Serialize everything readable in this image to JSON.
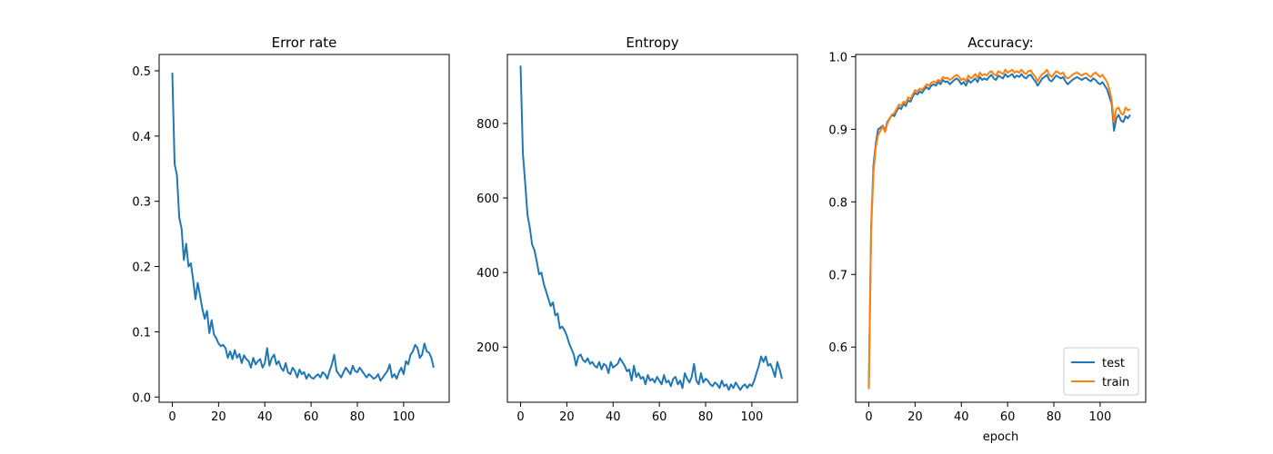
{
  "chart_data": [
    {
      "type": "line",
      "title": "Error rate",
      "xlabel": "",
      "ylabel": "",
      "xlim": [
        -5.7,
        119.7
      ],
      "ylim": [
        -0.008,
        0.525
      ],
      "xticks": [
        0,
        20,
        40,
        60,
        80,
        100
      ],
      "yticks": [
        0.0,
        0.1,
        0.2,
        0.3,
        0.4,
        0.5
      ],
      "ytick_labels": [
        "0.0",
        "0.1",
        "0.2",
        "0.3",
        "0.4",
        "0.5"
      ],
      "grid": false,
      "legend": null,
      "series": [
        {
          "color": "#1f77b4",
          "x": [
            0,
            1,
            2,
            3,
            4,
            5,
            6,
            7,
            8,
            9,
            10,
            11,
            12,
            13,
            14,
            15,
            16,
            17,
            18,
            19,
            20,
            21,
            22,
            23,
            24,
            25,
            26,
            27,
            28,
            29,
            30,
            31,
            32,
            33,
            34,
            35,
            36,
            37,
            38,
            39,
            40,
            41,
            42,
            43,
            44,
            45,
            46,
            47,
            48,
            49,
            50,
            51,
            52,
            53,
            54,
            55,
            56,
            57,
            58,
            59,
            60,
            61,
            62,
            63,
            64,
            65,
            66,
            67,
            68,
            69,
            70,
            71,
            72,
            73,
            74,
            75,
            76,
            77,
            78,
            79,
            80,
            81,
            82,
            83,
            84,
            85,
            86,
            87,
            88,
            89,
            90,
            91,
            92,
            93,
            94,
            95,
            96,
            97,
            98,
            99,
            100,
            101,
            102,
            103,
            104,
            105,
            106,
            107,
            108,
            109,
            110,
            111,
            112,
            113
          ],
          "values": [
            0.497,
            0.357,
            0.34,
            0.275,
            0.258,
            0.21,
            0.235,
            0.2,
            0.205,
            0.18,
            0.15,
            0.175,
            0.155,
            0.135,
            0.12,
            0.132,
            0.098,
            0.118,
            0.096,
            0.09,
            0.082,
            0.078,
            0.08,
            0.075,
            0.06,
            0.07,
            0.058,
            0.072,
            0.06,
            0.066,
            0.052,
            0.064,
            0.058,
            0.055,
            0.045,
            0.06,
            0.05,
            0.055,
            0.058,
            0.045,
            0.052,
            0.075,
            0.048,
            0.06,
            0.065,
            0.05,
            0.055,
            0.045,
            0.04,
            0.052,
            0.038,
            0.035,
            0.045,
            0.04,
            0.03,
            0.042,
            0.035,
            0.038,
            0.028,
            0.035,
            0.03,
            0.028,
            0.032,
            0.035,
            0.03,
            0.038,
            0.035,
            0.028,
            0.04,
            0.05,
            0.065,
            0.04,
            0.035,
            0.03,
            0.038,
            0.045,
            0.04,
            0.035,
            0.048,
            0.04,
            0.038,
            0.045,
            0.04,
            0.035,
            0.03,
            0.035,
            0.032,
            0.028,
            0.03,
            0.035,
            0.025,
            0.03,
            0.035,
            0.04,
            0.05,
            0.03,
            0.035,
            0.028,
            0.038,
            0.045,
            0.035,
            0.055,
            0.05,
            0.065,
            0.07,
            0.08,
            0.075,
            0.06,
            0.065,
            0.082,
            0.07,
            0.068,
            0.06,
            0.045
          ]
        }
      ]
    },
    {
      "type": "line",
      "title": "Entropy",
      "xlabel": "",
      "ylabel": "",
      "xlim": [
        -5.7,
        119.7
      ],
      "ylim": [
        52,
        985
      ],
      "xticks": [
        0,
        20,
        40,
        60,
        80,
        100
      ],
      "yticks": [
        200,
        400,
        600,
        800
      ],
      "ytick_labels": [
        "200",
        "400",
        "600",
        "800"
      ],
      "grid": false,
      "legend": null,
      "series": [
        {
          "color": "#1f77b4",
          "x": [
            0,
            1,
            2,
            3,
            4,
            5,
            6,
            7,
            8,
            9,
            10,
            11,
            12,
            13,
            14,
            15,
            16,
            17,
            18,
            19,
            20,
            21,
            22,
            23,
            24,
            25,
            26,
            27,
            28,
            29,
            30,
            31,
            32,
            33,
            34,
            35,
            36,
            37,
            38,
            39,
            40,
            41,
            42,
            43,
            44,
            45,
            46,
            47,
            48,
            49,
            50,
            51,
            52,
            53,
            54,
            55,
            56,
            57,
            58,
            59,
            60,
            61,
            62,
            63,
            64,
            65,
            66,
            67,
            68,
            69,
            70,
            71,
            72,
            73,
            74,
            75,
            76,
            77,
            78,
            79,
            80,
            81,
            82,
            83,
            84,
            85,
            86,
            87,
            88,
            89,
            90,
            91,
            92,
            93,
            94,
            95,
            96,
            97,
            98,
            99,
            100,
            101,
            102,
            103,
            104,
            105,
            106,
            107,
            108,
            109,
            110,
            111,
            112,
            113
          ],
          "values": [
            955,
            720,
            640,
            555,
            520,
            475,
            460,
            430,
            395,
            400,
            370,
            350,
            330,
            310,
            320,
            285,
            290,
            250,
            255,
            245,
            230,
            210,
            195,
            180,
            150,
            175,
            180,
            165,
            160,
            170,
            155,
            160,
            150,
            145,
            160,
            140,
            155,
            150,
            130,
            160,
            145,
            150,
            155,
            170,
            160,
            150,
            135,
            140,
            110,
            150,
            120,
            130,
            115,
            120,
            100,
            125,
            110,
            115,
            105,
            120,
            110,
            100,
            125,
            105,
            110,
            95,
            115,
            120,
            100,
            110,
            90,
            130,
            115,
            105,
            120,
            155,
            110,
            100,
            130,
            105,
            115,
            110,
            100,
            95,
            105,
            100,
            90,
            110,
            95,
            100,
            85,
            100,
            90,
            105,
            95,
            85,
            95,
            100,
            90,
            100,
            95,
            110,
            130,
            150,
            175,
            160,
            175,
            150,
            155,
            140,
            120,
            160,
            140,
            115
          ]
        }
      ]
    },
    {
      "type": "line",
      "title": "Accuracy:",
      "xlabel": "epoch",
      "ylabel": "",
      "xlim": [
        -5.7,
        119.7
      ],
      "ylim": [
        0.524,
        1.003
      ],
      "xticks": [
        0,
        20,
        40,
        60,
        80,
        100
      ],
      "yticks": [
        0.6,
        0.7,
        0.8,
        0.9,
        1.0
      ],
      "ytick_labels": [
        "0.6",
        "0.7",
        "0.8",
        "0.9",
        "1.0"
      ],
      "grid": false,
      "legend": "lower right",
      "series": [
        {
          "name": "test",
          "color": "#1f77b4",
          "x": [
            0,
            1,
            2,
            3,
            4,
            5,
            6,
            7,
            8,
            9,
            10,
            11,
            12,
            13,
            14,
            15,
            16,
            17,
            18,
            19,
            20,
            21,
            22,
            23,
            24,
            25,
            26,
            27,
            28,
            29,
            30,
            31,
            32,
            33,
            34,
            35,
            36,
            37,
            38,
            39,
            40,
            41,
            42,
            43,
            44,
            45,
            46,
            47,
            48,
            49,
            50,
            51,
            52,
            53,
            54,
            55,
            56,
            57,
            58,
            59,
            60,
            61,
            62,
            63,
            64,
            65,
            66,
            67,
            68,
            69,
            70,
            71,
            72,
            73,
            74,
            75,
            76,
            77,
            78,
            79,
            80,
            81,
            82,
            83,
            84,
            85,
            86,
            87,
            88,
            89,
            90,
            91,
            92,
            93,
            94,
            95,
            96,
            97,
            98,
            99,
            100,
            101,
            102,
            103,
            104,
            105,
            106,
            107,
            108,
            109,
            110,
            111,
            112,
            113
          ],
          "values": [
            0.545,
            0.765,
            0.85,
            0.88,
            0.9,
            0.902,
            0.905,
            0.898,
            0.91,
            0.915,
            0.92,
            0.918,
            0.925,
            0.93,
            0.928,
            0.935,
            0.932,
            0.94,
            0.938,
            0.945,
            0.95,
            0.948,
            0.952,
            0.95,
            0.955,
            0.958,
            0.955,
            0.96,
            0.962,
            0.96,
            0.965,
            0.962,
            0.968,
            0.965,
            0.966,
            0.962,
            0.965,
            0.968,
            0.97,
            0.967,
            0.962,
            0.965,
            0.96,
            0.968,
            0.964,
            0.967,
            0.97,
            0.965,
            0.972,
            0.968,
            0.97,
            0.968,
            0.972,
            0.975,
            0.97,
            0.968,
            0.974,
            0.972,
            0.97,
            0.976,
            0.972,
            0.974,
            0.976,
            0.971,
            0.974,
            0.972,
            0.976,
            0.972,
            0.97,
            0.974,
            0.975,
            0.97,
            0.966,
            0.96,
            0.965,
            0.97,
            0.972,
            0.975,
            0.968,
            0.966,
            0.97,
            0.974,
            0.972,
            0.97,
            0.972,
            0.966,
            0.962,
            0.965,
            0.968,
            0.97,
            0.972,
            0.97,
            0.968,
            0.97,
            0.971,
            0.968,
            0.966,
            0.97,
            0.968,
            0.964,
            0.962,
            0.965,
            0.96,
            0.955,
            0.945,
            0.935,
            0.898,
            0.915,
            0.92,
            0.912,
            0.91,
            0.918,
            0.915,
            0.92
          ]
        },
        {
          "name": "train",
          "color": "#ff7f0e",
          "x": [
            0,
            1,
            2,
            3,
            4,
            5,
            6,
            7,
            8,
            9,
            10,
            11,
            12,
            13,
            14,
            15,
            16,
            17,
            18,
            19,
            20,
            21,
            22,
            23,
            24,
            25,
            26,
            27,
            28,
            29,
            30,
            31,
            32,
            33,
            34,
            35,
            36,
            37,
            38,
            39,
            40,
            41,
            42,
            43,
            44,
            45,
            46,
            47,
            48,
            49,
            50,
            51,
            52,
            53,
            54,
            55,
            56,
            57,
            58,
            59,
            60,
            61,
            62,
            63,
            64,
            65,
            66,
            67,
            68,
            69,
            70,
            71,
            72,
            73,
            74,
            75,
            76,
            77,
            78,
            79,
            80,
            81,
            82,
            83,
            84,
            85,
            86,
            87,
            88,
            89,
            90,
            91,
            92,
            93,
            94,
            95,
            96,
            97,
            98,
            99,
            100,
            101,
            102,
            103,
            104,
            105,
            106,
            107,
            108,
            109,
            110,
            111,
            112,
            113
          ],
          "values": [
            0.542,
            0.76,
            0.84,
            0.875,
            0.892,
            0.898,
            0.904,
            0.896,
            0.908,
            0.914,
            0.92,
            0.922,
            0.928,
            0.934,
            0.932,
            0.938,
            0.936,
            0.944,
            0.942,
            0.948,
            0.954,
            0.952,
            0.956,
            0.954,
            0.958,
            0.962,
            0.96,
            0.964,
            0.966,
            0.964,
            0.968,
            0.966,
            0.972,
            0.97,
            0.971,
            0.968,
            0.97,
            0.973,
            0.975,
            0.972,
            0.968,
            0.97,
            0.966,
            0.974,
            0.97,
            0.972,
            0.976,
            0.971,
            0.978,
            0.974,
            0.976,
            0.974,
            0.978,
            0.98,
            0.976,
            0.974,
            0.98,
            0.978,
            0.976,
            0.982,
            0.978,
            0.98,
            0.982,
            0.978,
            0.98,
            0.978,
            0.982,
            0.978,
            0.976,
            0.98,
            0.981,
            0.976,
            0.972,
            0.966,
            0.972,
            0.976,
            0.978,
            0.982,
            0.975,
            0.972,
            0.976,
            0.98,
            0.978,
            0.976,
            0.978,
            0.972,
            0.97,
            0.972,
            0.975,
            0.977,
            0.978,
            0.976,
            0.974,
            0.976,
            0.977,
            0.974,
            0.972,
            0.976,
            0.978,
            0.975,
            0.972,
            0.975,
            0.97,
            0.965,
            0.955,
            0.94,
            0.91,
            0.928,
            0.93,
            0.922,
            0.92,
            0.93,
            0.926,
            0.928
          ]
        }
      ]
    }
  ]
}
